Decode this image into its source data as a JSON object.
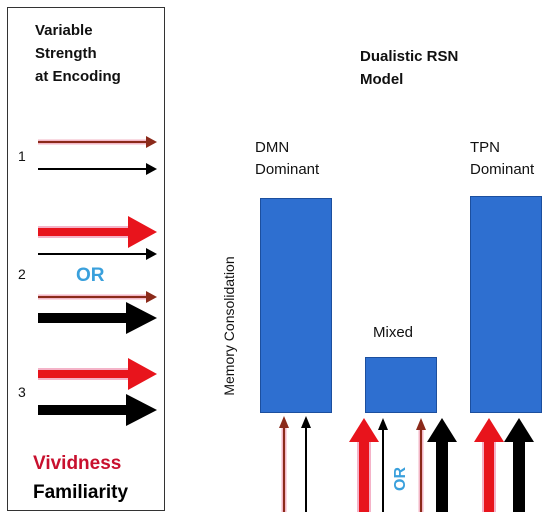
{
  "encoding_panel": {
    "title": "Variable\nStrength\nat Encoding",
    "row_labels": [
      "1",
      "2",
      "3"
    ],
    "or_label": "OR"
  },
  "model": {
    "title": "Dualistic RSN\nModel",
    "y_axis_label": "Memory Consolidation",
    "columns": [
      {
        "label": "DMN\nDominant"
      },
      {
        "label": "Mixed"
      },
      {
        "label": "TPN\nDominant"
      }
    ],
    "or_label": "OR"
  },
  "legend": {
    "vividness": "Vividness",
    "familiarity": "Familiarity"
  },
  "colors": {
    "vividness": "#e8141c",
    "thin_vividness": "#8b2a1a",
    "familiarity": "#000000",
    "bar": "#2e6fd0",
    "or_text": "#3aa0dc"
  }
}
